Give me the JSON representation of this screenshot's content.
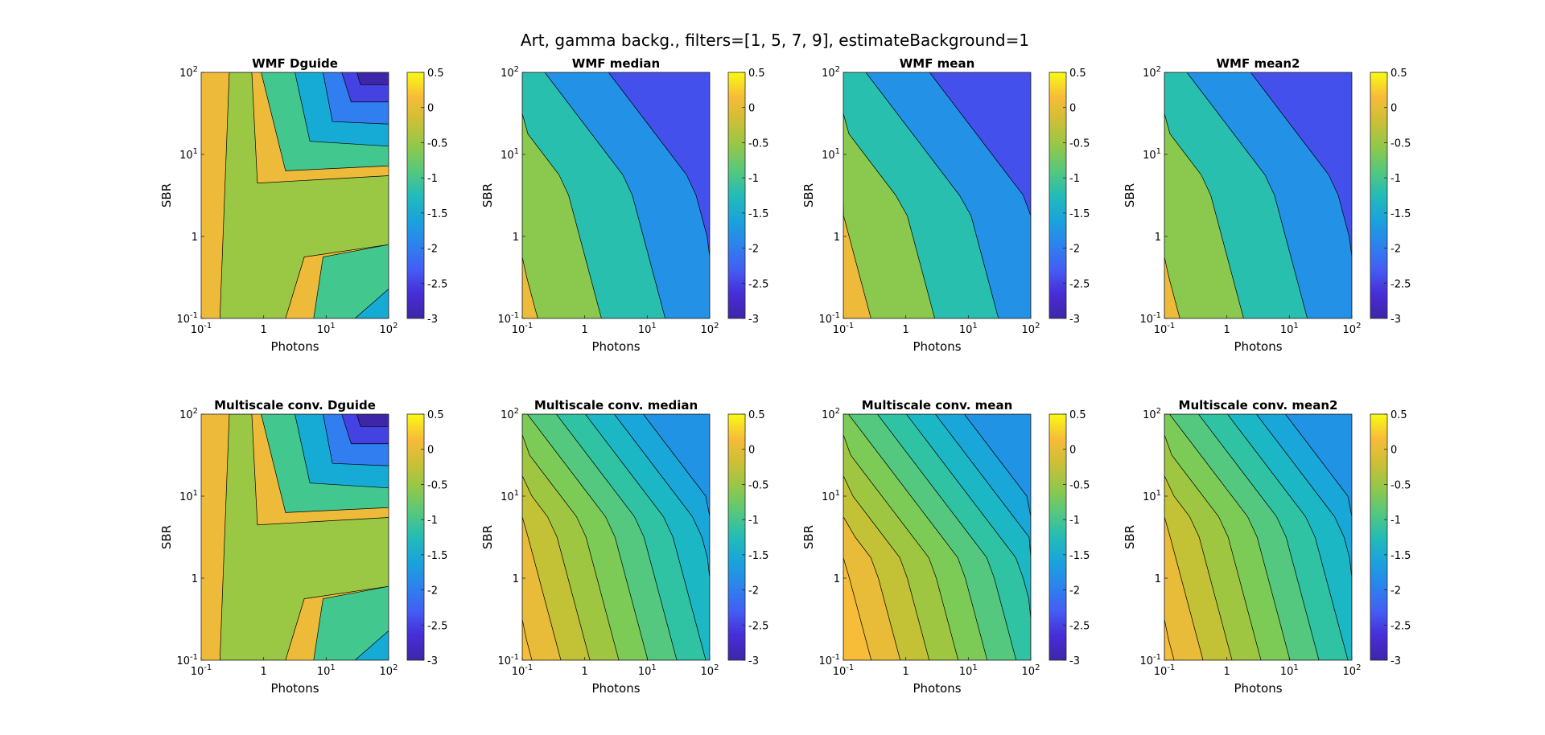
{
  "figure": {
    "title": "Art, gamma backg., filters=[1, 5, 7, 9], estimateBackground=1"
  },
  "chart_data": [
    {
      "type": "contour",
      "title": "WMF Dguide",
      "xlabel": "Photons",
      "ylabel": "SBR",
      "xscale": "log",
      "yscale": "log",
      "xlim": [
        0.1,
        100
      ],
      "ylim": [
        0.1,
        100
      ],
      "xticks": [
        "10-1",
        "1",
        "101",
        "102"
      ],
      "yticks": [
        "10-1",
        "1",
        "101",
        "102"
      ],
      "colorbar": {
        "range": [
          -3,
          0.5
        ],
        "ticks": [
          "0.5",
          "0",
          "-0.5",
          "-1",
          "-1.5",
          "-2",
          "-2.5",
          "-3"
        ]
      },
      "pattern": "dguide",
      "steps": [
        0,
        1,
        2,
        3,
        4,
        5,
        6
      ],
      "colormap": "parula"
    },
    {
      "type": "contour",
      "title": "WMF median",
      "xlabel": "Photons",
      "ylabel": "SBR",
      "xscale": "log",
      "yscale": "log",
      "xlim": [
        0.1,
        100
      ],
      "ylim": [
        0.1,
        100
      ],
      "xticks": [
        "10-1",
        "1",
        "101",
        "102"
      ],
      "yticks": [
        "10-1",
        "1",
        "101",
        "102"
      ],
      "colorbar": {
        "range": [
          -3,
          0.5
        ],
        "ticks": [
          "0.5",
          "0",
          "-0.5",
          "-1",
          "-1.5",
          "-2",
          "-2.5",
          "-3"
        ]
      },
      "pattern": "diag",
      "steps": [
        0,
        1,
        2,
        3,
        4
      ],
      "bend": 0.55,
      "colormap": "parula"
    },
    {
      "type": "contour",
      "title": "WMF mean",
      "xlabel": "Photons",
      "ylabel": "SBR",
      "xscale": "log",
      "yscale": "log",
      "xlim": [
        0.1,
        100
      ],
      "ylim": [
        0.1,
        100
      ],
      "xticks": [
        "10-1",
        "1",
        "101",
        "102"
      ],
      "yticks": [
        "10-1",
        "1",
        "101",
        "102"
      ],
      "colorbar": {
        "range": [
          -3,
          0.5
        ],
        "ticks": [
          "0.5",
          "0",
          "-0.5",
          "-1",
          "-1.5",
          "-2",
          "-2.5",
          "-3"
        ]
      },
      "pattern": "diag",
      "steps": [
        0,
        1,
        2,
        3,
        4
      ],
      "bend": 0.45,
      "colormap": "parula"
    },
    {
      "type": "contour",
      "title": "WMF mean2",
      "xlabel": "Photons",
      "ylabel": "SBR",
      "xscale": "log",
      "yscale": "log",
      "xlim": [
        0.1,
        100
      ],
      "ylim": [
        0.1,
        100
      ],
      "xticks": [
        "10-1",
        "1",
        "101",
        "102"
      ],
      "yticks": [
        "10-1",
        "1",
        "101",
        "102"
      ],
      "colorbar": {
        "range": [
          -3,
          0.5
        ],
        "ticks": [
          "0.5",
          "0",
          "-0.5",
          "-1",
          "-1.5",
          "-2",
          "-2.5",
          "-3"
        ]
      },
      "pattern": "diag",
      "steps": [
        0,
        1,
        2,
        3,
        4
      ],
      "bend": 0.55,
      "colormap": "parula"
    },
    {
      "type": "contour",
      "title": "Multiscale conv. Dguide",
      "xlabel": "Photons",
      "ylabel": "SBR",
      "xscale": "log",
      "yscale": "log",
      "xlim": [
        0.1,
        100
      ],
      "ylim": [
        0.1,
        100
      ],
      "xticks": [
        "10-1",
        "1",
        "101",
        "102"
      ],
      "yticks": [
        "10-1",
        "1",
        "101",
        "102"
      ],
      "colorbar": {
        "range": [
          -3,
          0.5
        ],
        "ticks": [
          "0.5",
          "0",
          "-0.5",
          "-1",
          "-1.5",
          "-2",
          "-2.5",
          "-3"
        ]
      },
      "pattern": "dguide",
      "steps": [
        0,
        1,
        2,
        3,
        4,
        5,
        6
      ],
      "colormap": "parula"
    },
    {
      "type": "contour",
      "title": "Multiscale conv. median",
      "xlabel": "Photons",
      "ylabel": "SBR",
      "xscale": "log",
      "yscale": "log",
      "xlim": [
        0.1,
        100
      ],
      "ylim": [
        0.1,
        100
      ],
      "xticks": [
        "10-1",
        "1",
        "101",
        "102"
      ],
      "yticks": [
        "10-1",
        "1",
        "101",
        "102"
      ],
      "colorbar": {
        "range": [
          -3,
          0.5
        ],
        "ticks": [
          "0.5",
          "0",
          "-0.5",
          "-1",
          "-1.5",
          "-2",
          "-2.5",
          "-3"
        ]
      },
      "pattern": "diag",
      "steps": [
        0.5,
        0.25,
        0,
        -0.25,
        -0.5,
        -0.75,
        -1,
        -1.25,
        -1.5,
        -1.75,
        -2
      ],
      "bend": 0.55,
      "colormap": "parula"
    },
    {
      "type": "contour",
      "title": "Multiscale conv. mean",
      "xlabel": "Photons",
      "ylabel": "SBR",
      "xscale": "log",
      "yscale": "log",
      "xlim": [
        0.1,
        100
      ],
      "ylim": [
        0.1,
        100
      ],
      "xticks": [
        "10-1",
        "1",
        "101",
        "102"
      ],
      "yticks": [
        "10-1",
        "1",
        "101",
        "102"
      ],
      "colorbar": {
        "range": [
          -3,
          0.5
        ],
        "ticks": [
          "0.5",
          "0",
          "-0.5",
          "-1",
          "-1.5",
          "-2",
          "-2.5",
          "-3"
        ]
      },
      "pattern": "diag",
      "steps": [
        0.5,
        0.25,
        0,
        -0.25,
        -0.5,
        -0.75,
        -1,
        -1.25,
        -1.5,
        -1.75,
        -2
      ],
      "bend": 0.4,
      "colormap": "parula"
    },
    {
      "type": "contour",
      "title": "Multiscale conv. mean2",
      "xlabel": "Photons",
      "ylabel": "SBR",
      "xscale": "log",
      "yscale": "log",
      "xlim": [
        0.1,
        100
      ],
      "ylim": [
        0.1,
        100
      ],
      "xticks": [
        "10-1",
        "1",
        "101",
        "102"
      ],
      "yticks": [
        "10-1",
        "1",
        "101",
        "102"
      ],
      "colorbar": {
        "range": [
          -3,
          0.5
        ],
        "ticks": [
          "0.5",
          "0",
          "-0.5",
          "-1",
          "-1.5",
          "-2",
          "-2.5",
          "-3"
        ]
      },
      "pattern": "diag",
      "steps": [
        0.5,
        0.25,
        0,
        -0.25,
        -0.5,
        -0.75,
        -1,
        -1.25,
        -1.5,
        -1.75,
        -2
      ],
      "bend": 0.55,
      "colormap": "parula"
    }
  ]
}
